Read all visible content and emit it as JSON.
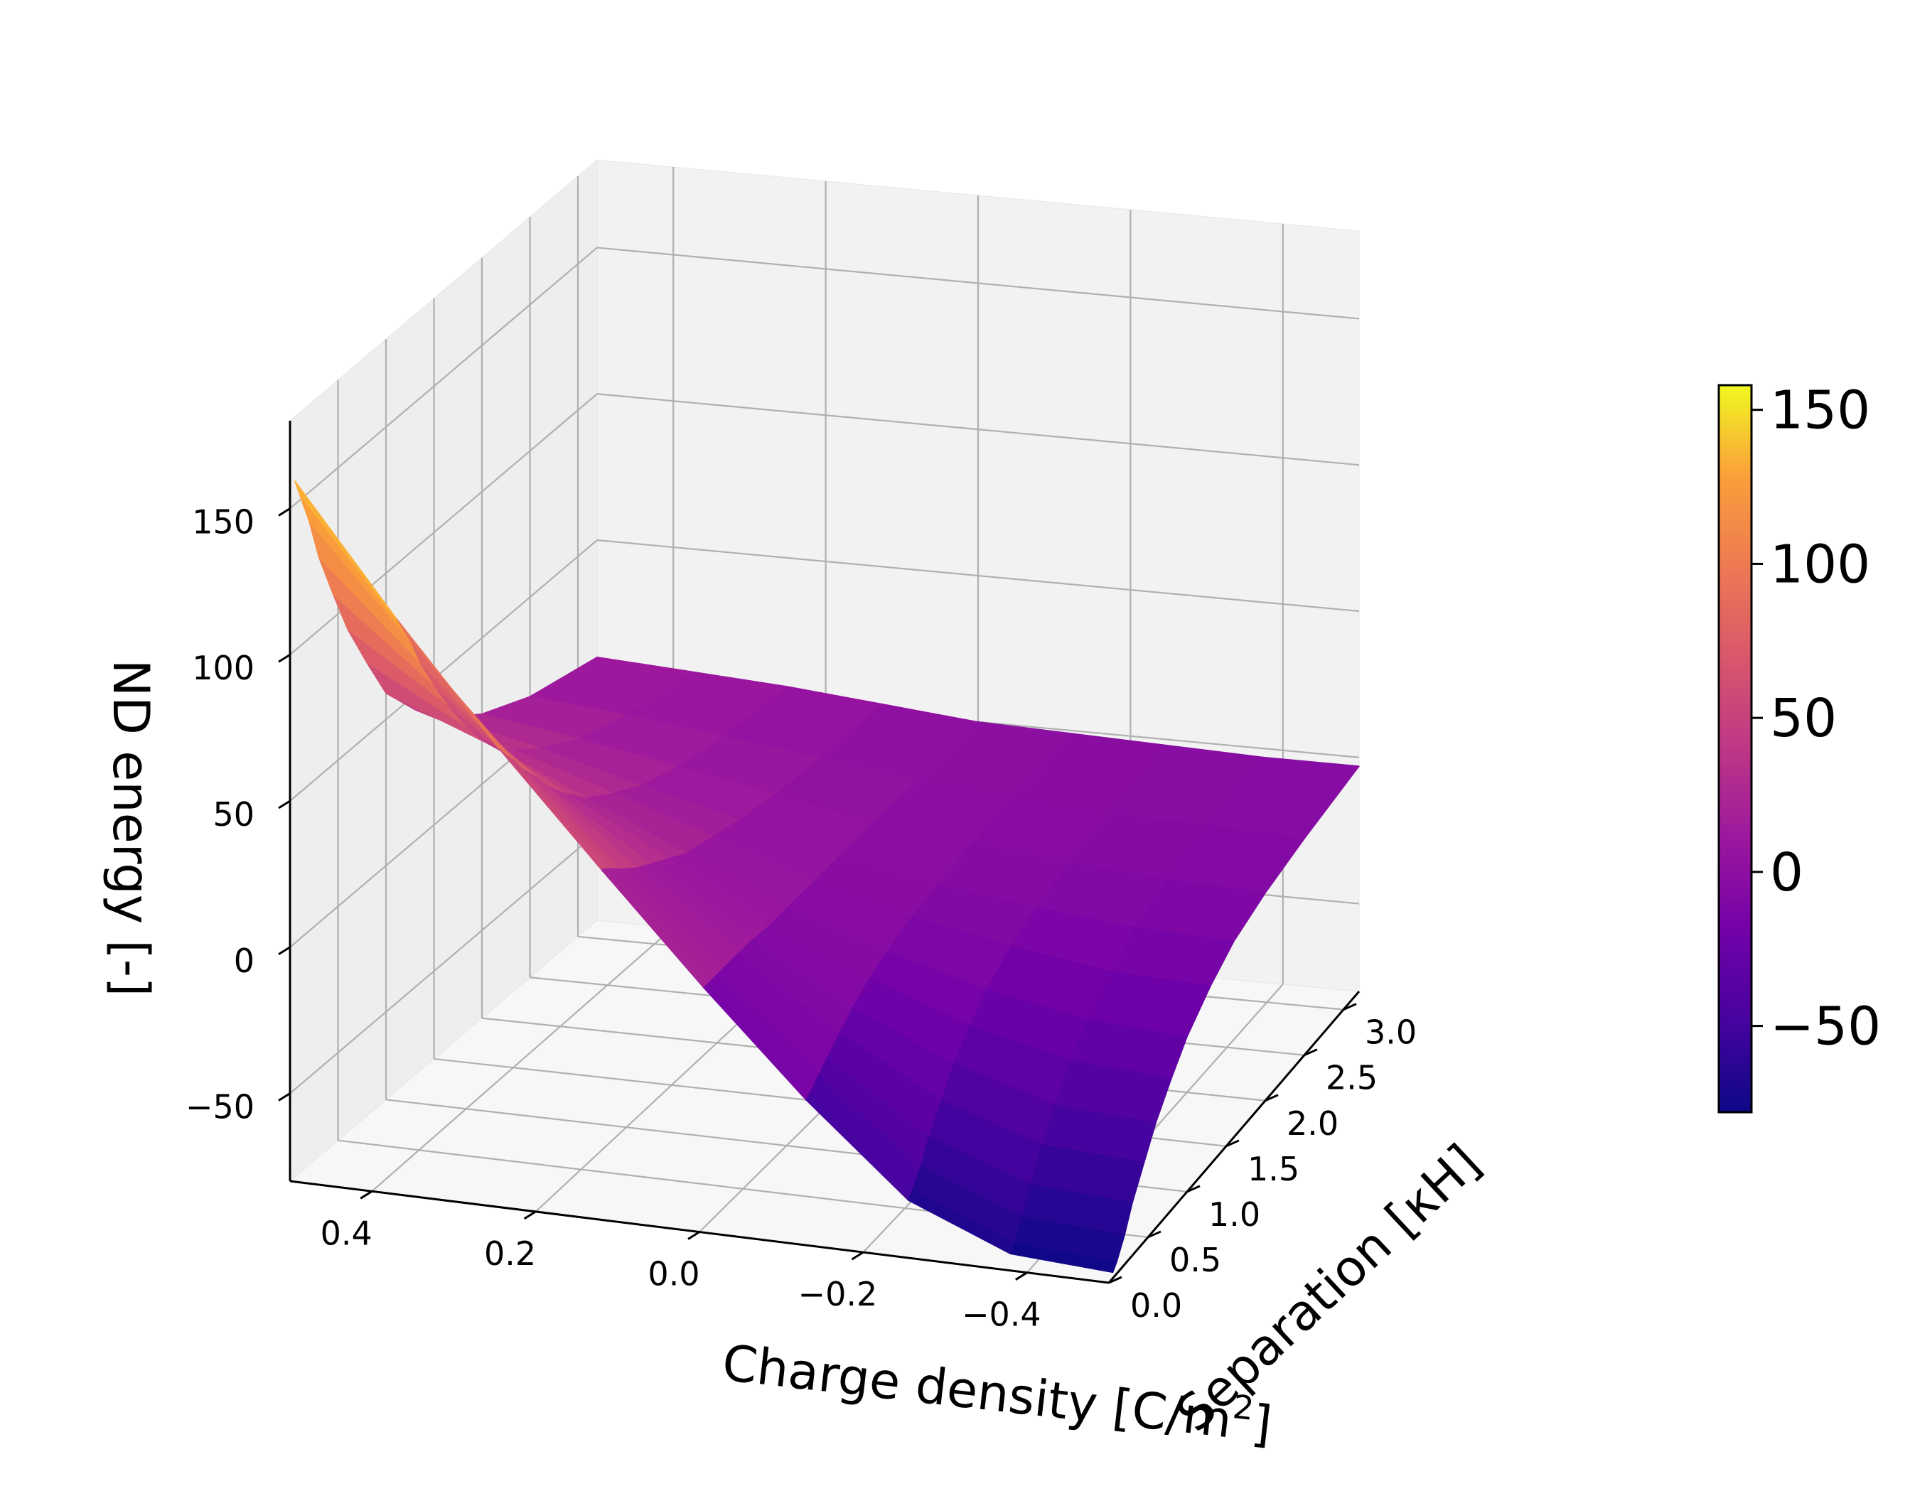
{
  "chart_data": {
    "type": "surface3d",
    "colormap": "plasma",
    "x_axis": {
      "label_text": "Charge density [C/m",
      "label_superscript": "2",
      "label_close": "]",
      "ticks": [
        0.4,
        0.2,
        0.0,
        -0.2,
        -0.4
      ],
      "tick_labels": [
        "0.4",
        "0.2",
        "0.0",
        "−0.2",
        "−0.4"
      ],
      "range": [
        0.5,
        -0.5
      ]
    },
    "y_axis": {
      "label": "Separation [κH]",
      "ticks": [
        0.0,
        0.5,
        1.0,
        1.5,
        2.0,
        2.5,
        3.0
      ],
      "tick_labels": [
        "0.0",
        "0.5",
        "1.0",
        "1.5",
        "2.0",
        "2.5",
        "3.0"
      ],
      "range": [
        0.0,
        3.2
      ]
    },
    "z_axis": {
      "label": "ND energy [-]",
      "ticks": [
        -50,
        0,
        50,
        100,
        150
      ],
      "tick_labels": [
        "−50",
        "0",
        "50",
        "100",
        "150"
      ],
      "range": [
        -80,
        180
      ]
    },
    "colorbar": {
      "ticks": [
        -50,
        0,
        50,
        100,
        150
      ],
      "tick_labels": [
        "−50",
        "0",
        "50",
        "100",
        "150"
      ],
      "range": [
        -78,
        158
      ]
    },
    "surface": {
      "charge_density": [
        0.5,
        0.375,
        0.25,
        0.125,
        0.0,
        -0.125,
        -0.25,
        -0.375,
        -0.5
      ],
      "separation": [
        0.05,
        0.1,
        0.2,
        0.3,
        0.45,
        0.6,
        0.8,
        1.0,
        1.3,
        1.6,
        2.0,
        2.5,
        3.2
      ],
      "energy": [
        [
          158,
          152,
          140,
          125,
          108,
          92,
          75,
          59,
          45,
          34,
          24,
          16,
          10
        ],
        [
          115,
          111,
          103,
          93,
          81,
          70,
          57,
          46,
          35,
          27,
          19,
          13,
          8
        ],
        [
          75,
          72,
          67,
          61,
          54,
          46,
          38,
          31,
          24,
          18,
          13,
          9,
          6
        ],
        [
          38,
          37,
          34,
          31,
          27,
          24,
          20,
          16,
          13,
          10,
          7,
          5,
          3
        ],
        [
          2,
          2,
          2,
          2,
          2,
          2,
          1,
          1,
          1,
          1,
          1,
          0,
          0
        ],
        [
          -32,
          -31,
          -28,
          -25,
          -21,
          -17,
          -13,
          -10,
          -7,
          -5,
          -3,
          -2,
          -1
        ],
        [
          -62,
          -60,
          -55,
          -48,
          -40,
          -32,
          -25,
          -19,
          -13,
          -9,
          -6,
          -4,
          -2
        ],
        [
          -76,
          -74,
          -68,
          -60,
          -51,
          -42,
          -33,
          -25,
          -18,
          -12,
          -8,
          -5,
          -3
        ],
        [
          -78,
          -76,
          -70,
          -62,
          -53,
          -44,
          -35,
          -27,
          -19,
          -13,
          -9,
          -6,
          -3
        ]
      ]
    }
  }
}
